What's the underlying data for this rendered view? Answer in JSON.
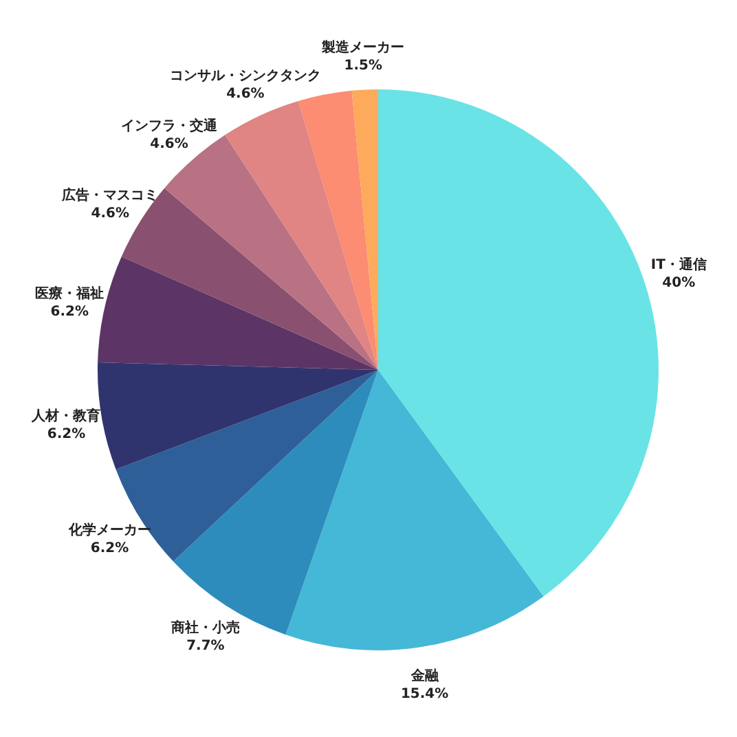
{
  "chart_data": {
    "type": "pie",
    "categories": [
      "IT・通信",
      "金融",
      "商社・小売",
      "化学メーカー",
      "人材・教育",
      "医療・福祉",
      "広告・マスコミ",
      "インフラ・交通",
      "コンサル・シンクタンク",
      null,
      "製造メーカー"
    ],
    "values": [
      40,
      15.4,
      7.7,
      6.2,
      6.2,
      6.2,
      4.6,
      4.6,
      4.6,
      3.1,
      1.5
    ],
    "value_labels": [
      "40%",
      "15.4%",
      "7.7%",
      "6.2%",
      "6.2%",
      "6.2%",
      "4.6%",
      "4.6%",
      "4.6%",
      null,
      "1.5%"
    ],
    "colors": [
      "#6ae3e6",
      "#44b8d6",
      "#2e8cbc",
      "#2e5f98",
      "#30346e",
      "#5c3566",
      "#8a5070",
      "#b87284",
      "#e08484",
      "#fc8c72",
      "#fdaa5c"
    ]
  }
}
